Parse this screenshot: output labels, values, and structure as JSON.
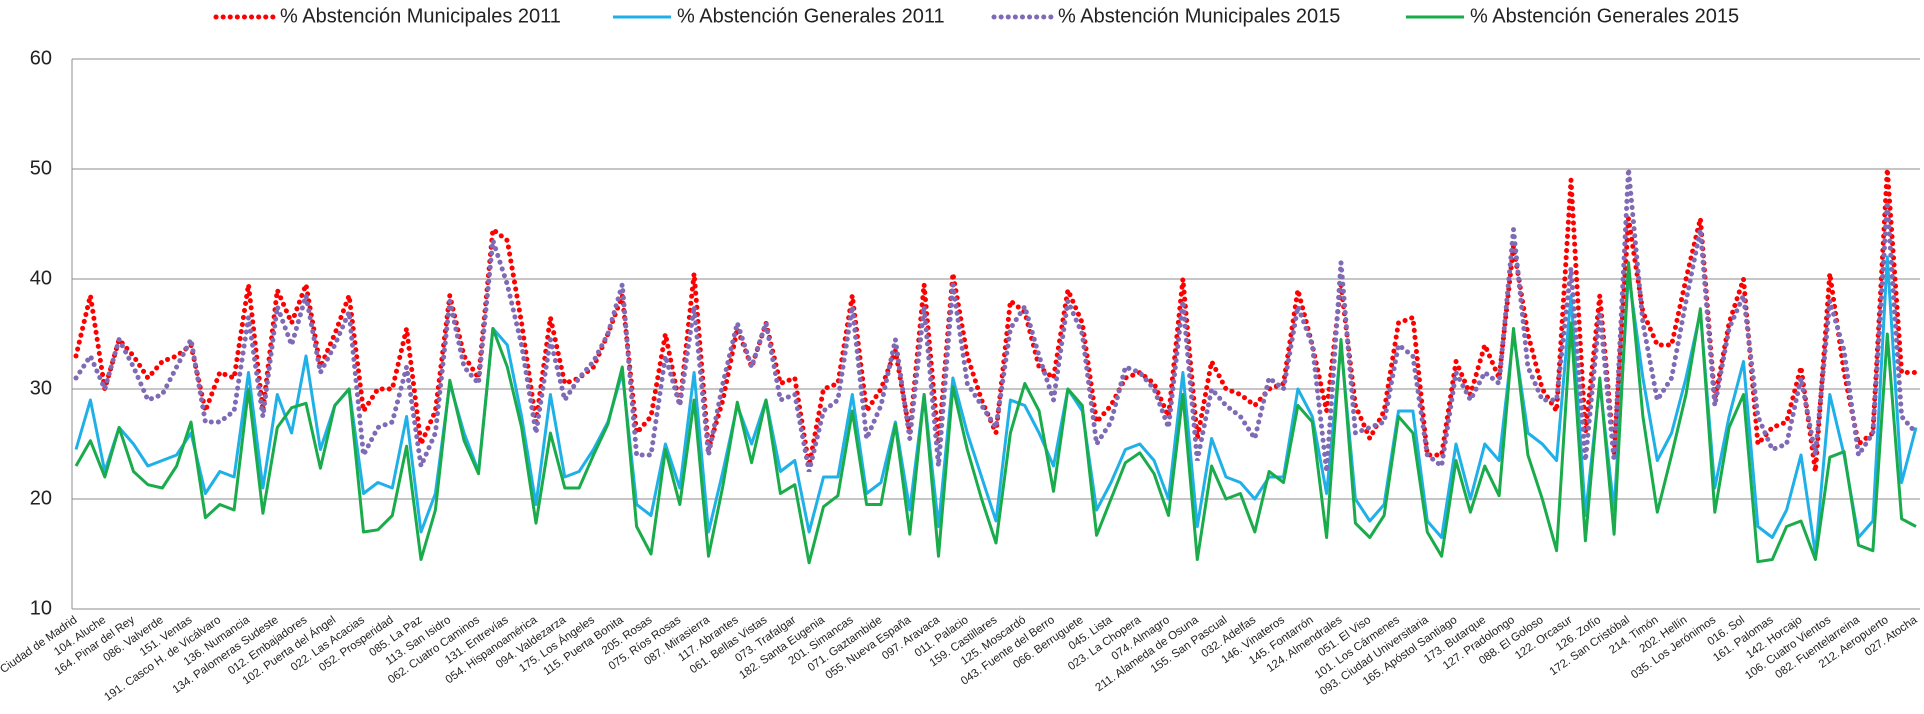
{
  "chart_data": {
    "type": "line",
    "categories": [
      "Ciudad de Madrid",
      null,
      "104. Aluche",
      null,
      "164. Pinar del Rey",
      null,
      "086. Valverde",
      null,
      "151. Ventas",
      null,
      "191. Casco H. de Vicálvaro",
      null,
      "136. Numancia",
      null,
      "134. Palomeras Sudeste",
      null,
      "012. Embajadores",
      null,
      "102. Puerta del Ángel",
      null,
      "022. Las Acacias",
      null,
      "052. Prosperidad",
      null,
      "085. La Paz",
      null,
      "113. San Isidro",
      null,
      "062. Cuatro Caminos",
      null,
      "131. Entrevías",
      null,
      "054. Hispanoamérica",
      null,
      "094. Valdezarza",
      null,
      "175. Los Ángeles",
      null,
      "115. Puerta Bonita",
      null,
      "205. Rosas",
      null,
      "075. Ríos Rosas",
      null,
      "087. Mirasierra",
      null,
      "117. Abrantes",
      null,
      "061. Bellas Vistas",
      null,
      "073. Trafalgar",
      null,
      "182. Santa Eugenia",
      null,
      "201. Simancas",
      null,
      "071. Gaztambide",
      null,
      "055. Nueva España",
      null,
      "097. Aravaca",
      null,
      "011. Palacio",
      null,
      "159. Castillares",
      null,
      "125. Moscardó",
      null,
      "043. Fuente del Berro",
      null,
      "066. Berruguete",
      null,
      "045. Lista",
      null,
      "023. La Chopera",
      null,
      "074. Almagro",
      null,
      "211. Alameda de Osuna",
      null,
      "155. San Pascual",
      null,
      "032. Adelfas",
      null,
      "146. Vinateros",
      null,
      "145. Fontarrón",
      null,
      "124. Almendrales",
      null,
      "051. El Viso",
      null,
      "101. Los Cármenes",
      null,
      "093. Ciudad Universitaria",
      null,
      "165. Apóstol Santiago",
      null,
      "173. Butarque",
      null,
      "127. Pradolongo",
      null,
      "088. El Goloso",
      null,
      "122. Orcasur",
      null,
      "126. Zofío",
      null,
      "172. San Cristóbal",
      null,
      "214. Timón",
      null,
      "202. Hellín",
      null,
      "035. Los Jerónimos",
      null,
      "016. Sol",
      null,
      "161. Palomas",
      null,
      "142. Horcajo",
      null,
      "106. Cuatro Vientos",
      null,
      "082. Fuentelarreina",
      null,
      "212. Aeropuerto",
      null,
      "027. Atocha"
    ],
    "series": [
      {
        "name": "% Abstención Municipales 2011",
        "color": "#ff0000",
        "line_style": "dotted",
        "values": [
          33,
          38.5,
          30,
          34.5,
          33,
          31,
          32.5,
          33,
          34,
          28,
          31.5,
          31,
          39.5,
          28,
          39,
          36,
          39.5,
          32,
          35,
          38.5,
          28,
          30,
          30,
          35.5,
          25,
          28,
          38.5,
          33,
          31,
          44.5,
          43.5,
          36,
          27,
          36.5,
          30.5,
          31,
          32,
          35,
          38.5,
          26,
          27.5,
          35,
          28.5,
          40.5,
          24.5,
          29,
          35.5,
          32,
          36,
          30.5,
          31,
          23,
          30,
          30.5,
          38.5,
          28,
          30,
          33.5,
          26,
          39.5,
          25,
          40.5,
          33,
          29,
          26,
          38,
          37,
          32,
          31,
          39,
          36,
          27,
          28.5,
          31,
          31.5,
          30.5,
          27.5,
          40,
          25.5,
          32.5,
          30,
          29.5,
          28.5,
          30,
          30.5,
          39,
          34,
          28,
          39.5,
          28.5,
          25.5,
          28,
          36,
          36.5,
          24,
          24,
          32.5,
          29.5,
          34,
          31,
          43,
          35,
          30,
          28,
          49,
          26,
          38.5,
          24,
          45.5,
          37,
          34,
          34,
          40,
          45.5,
          29,
          36,
          40,
          25,
          26.5,
          27,
          32,
          22.5,
          40.5,
          31.5,
          25,
          26,
          50,
          31.5,
          31.5
        ]
      },
      {
        "name": "% Abstención Generales 2011",
        "color": "#1fb0e8",
        "line_style": "solid",
        "values": [
          24.5,
          29,
          22.5,
          26.5,
          25,
          23,
          23.5,
          24,
          26,
          20.5,
          22.5,
          22,
          31.5,
          21,
          29.5,
          26,
          33,
          24.5,
          28.5,
          30,
          20.5,
          21.5,
          21,
          27.5,
          17,
          20.5,
          30.5,
          26,
          22.5,
          35.5,
          34,
          27.5,
          19.5,
          29.5,
          22,
          22.5,
          24.5,
          27,
          31.5,
          19.5,
          18.5,
          25,
          21,
          31.5,
          17,
          22.5,
          28.5,
          25,
          29,
          22.5,
          23.5,
          17,
          22,
          22,
          29.5,
          20.5,
          21.5,
          27,
          19,
          29.5,
          17.5,
          31,
          26,
          22,
          18,
          29,
          28.5,
          26,
          23,
          30,
          28,
          19,
          21.5,
          24.5,
          25,
          23.5,
          20,
          31.5,
          17.5,
          25.5,
          22,
          21.5,
          20,
          22,
          22,
          30,
          27.5,
          20.5,
          34,
          20,
          18,
          19.5,
          28,
          28,
          18,
          16.5,
          25,
          20,
          25,
          23.5,
          35,
          26,
          25,
          23.5,
          38.5,
          18.5,
          30.5,
          19,
          40.5,
          31,
          23.5,
          26,
          31,
          37,
          21,
          27.5,
          32.5,
          17.5,
          16.5,
          19,
          24,
          15,
          29.5,
          24,
          16.5,
          18,
          42,
          21.5,
          26.5
        ]
      },
      {
        "name": "% Abstención Municipales 2015",
        "color": "#7f6bb5",
        "line_style": "dotted",
        "values": [
          31,
          33,
          30,
          34.5,
          32,
          29,
          29.5,
          32,
          34.5,
          27,
          27,
          28,
          36.5,
          27.5,
          37.5,
          34,
          38.5,
          31.5,
          34,
          37,
          24,
          26.5,
          27,
          32,
          23,
          26,
          38,
          32,
          30.5,
          43.5,
          39.5,
          34,
          26,
          34.5,
          29,
          31,
          32.5,
          35,
          39.5,
          24,
          24,
          33,
          28.5,
          37.5,
          24,
          30.5,
          36,
          32,
          36,
          29,
          29.5,
          22.5,
          28,
          29,
          37.5,
          25.5,
          28.5,
          34.5,
          25.5,
          37.5,
          23,
          39.5,
          30.5,
          28.5,
          26.5,
          35.5,
          37.5,
          33,
          29,
          38,
          35,
          25,
          27,
          32,
          31.5,
          30,
          26.5,
          38,
          23.5,
          30,
          28.5,
          27.5,
          25.5,
          31,
          30,
          37.5,
          34,
          22.5,
          41.5,
          26,
          26.5,
          27,
          34,
          33,
          24,
          23,
          31.5,
          29,
          31.5,
          30.5,
          44.5,
          32,
          29,
          29,
          41,
          23.5,
          37,
          23.5,
          50,
          36,
          29,
          31,
          38,
          44.5,
          28.5,
          35.5,
          38.5,
          27.5,
          24.5,
          25,
          31,
          24,
          38,
          33.5,
          24,
          26,
          47,
          27.5,
          26
        ]
      },
      {
        "name": "% Abstención Generales 2015",
        "color": "#1aab4b",
        "line_style": "solid",
        "values": [
          23,
          25.3,
          22,
          26.5,
          22.5,
          21.3,
          21,
          23,
          27,
          18.3,
          19.5,
          19,
          30,
          18.7,
          26.5,
          28.3,
          28.7,
          22.8,
          28.5,
          30,
          17,
          17.2,
          18.5,
          24.8,
          14.5,
          19,
          30.8,
          25.3,
          22.3,
          35.5,
          32,
          26.5,
          17.8,
          26,
          21,
          21,
          24,
          26.8,
          32,
          17.5,
          15,
          24.5,
          19.5,
          29,
          14.8,
          21.2,
          28.8,
          23.3,
          29,
          20.5,
          21.3,
          14.2,
          19.3,
          20.3,
          28,
          19.5,
          19.5,
          26.8,
          16.8,
          29.5,
          14.8,
          30.2,
          24.5,
          20,
          16,
          26,
          30.5,
          28,
          20.7,
          30,
          28.5,
          16.7,
          20,
          23.3,
          24.2,
          22.3,
          18.5,
          29.5,
          14.5,
          23,
          20,
          20.5,
          17,
          22.5,
          21.5,
          28.5,
          27,
          16.5,
          34.5,
          17.8,
          16.5,
          18.5,
          27.5,
          26,
          17,
          14.8,
          23.5,
          18.8,
          23,
          20.3,
          35.5,
          24,
          20,
          15.3,
          36,
          16.2,
          31,
          16.8,
          41.5,
          27.5,
          18.8,
          24,
          29.5,
          37.3,
          18.8,
          26.5,
          29.5,
          14.3,
          14.5,
          17.5,
          18,
          14.5,
          23.8,
          24.3,
          15.8,
          15.3,
          35,
          18.2,
          17.5
        ]
      }
    ],
    "ylim": [
      10,
      60
    ],
    "yticks": [
      10,
      20,
      30,
      40,
      50,
      60
    ],
    "grid": true,
    "legend": "top"
  }
}
